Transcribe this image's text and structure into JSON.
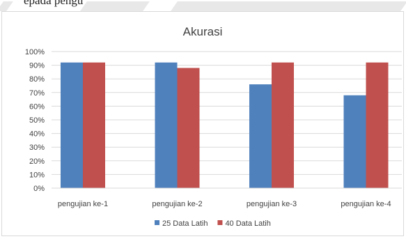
{
  "page_fragment": {
    "text": "epada pengu"
  },
  "colors": {
    "series_1": "#4f81bd",
    "series_2": "#c0504d",
    "grid": "#d9d9d9",
    "text": "#404040"
  },
  "chart_data": {
    "type": "bar",
    "title": "Akurasi",
    "xlabel": "",
    "ylabel": "",
    "categories": [
      "pengujian ke-1",
      "pengujian ke-2",
      "pengujian ke-3",
      "pengujian ke-4"
    ],
    "series": [
      {
        "name": "25 Data Latih",
        "values": [
          92,
          92,
          76,
          68
        ],
        "color": "#4f81bd"
      },
      {
        "name": "40 Data Latih",
        "values": [
          92,
          88,
          92,
          92
        ],
        "color": "#c0504d"
      }
    ],
    "ylim": [
      0,
      100
    ],
    "yticks": [
      "0%",
      "10%",
      "20%",
      "30%",
      "40%",
      "50%",
      "60%",
      "70%",
      "80%",
      "90%",
      "100%"
    ],
    "grid": true,
    "legend_position": "bottom"
  }
}
